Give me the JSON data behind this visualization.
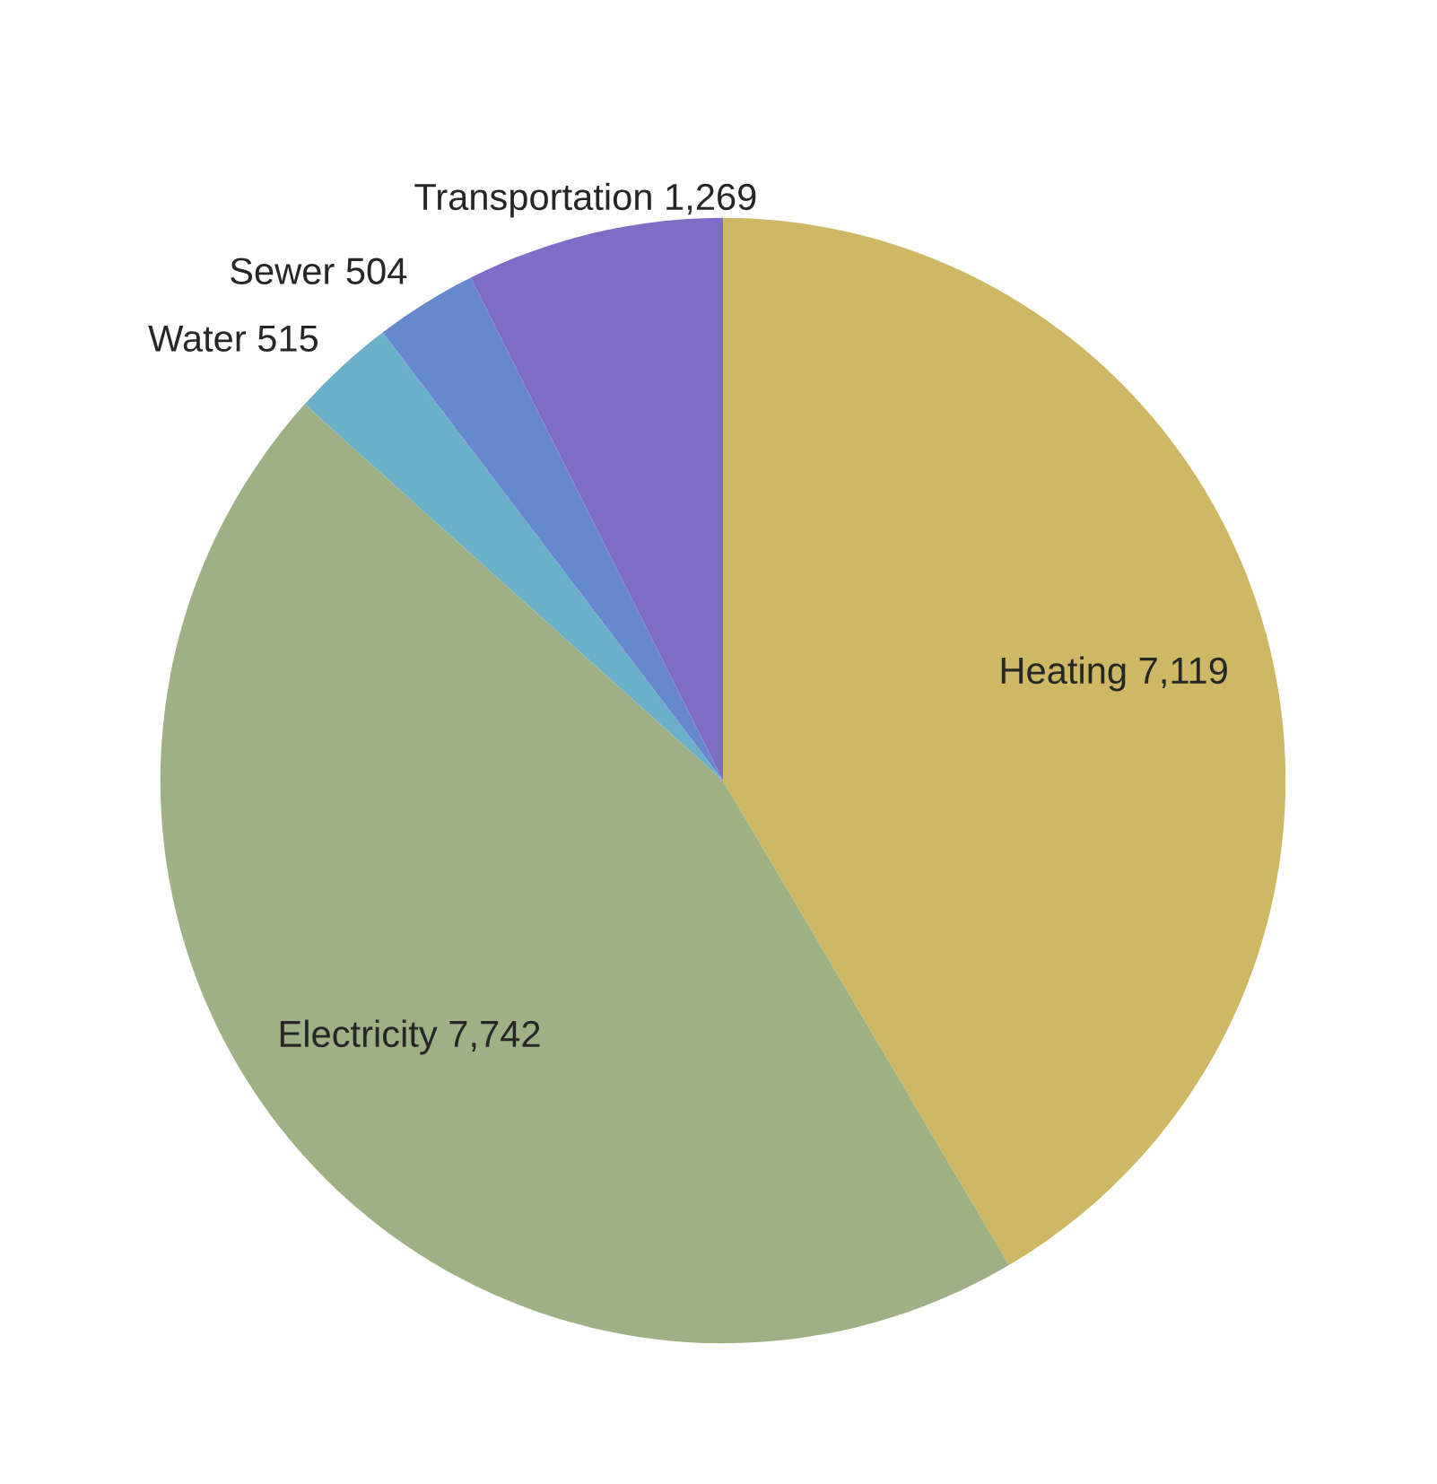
{
  "chart_data": {
    "type": "pie",
    "categories": [
      "Heating",
      "Electricity",
      "Water",
      "Sewer",
      "Transportation"
    ],
    "values": [
      7119,
      7742,
      515,
      504,
      1269
    ],
    "value_labels": [
      "7,119",
      "7,742",
      "515",
      "504",
      "1,269"
    ],
    "colors": [
      "#cfb865",
      "#9fb084",
      "#6bb0c8",
      "#6688cc",
      "#7f6cc6"
    ],
    "legend": false
  }
}
